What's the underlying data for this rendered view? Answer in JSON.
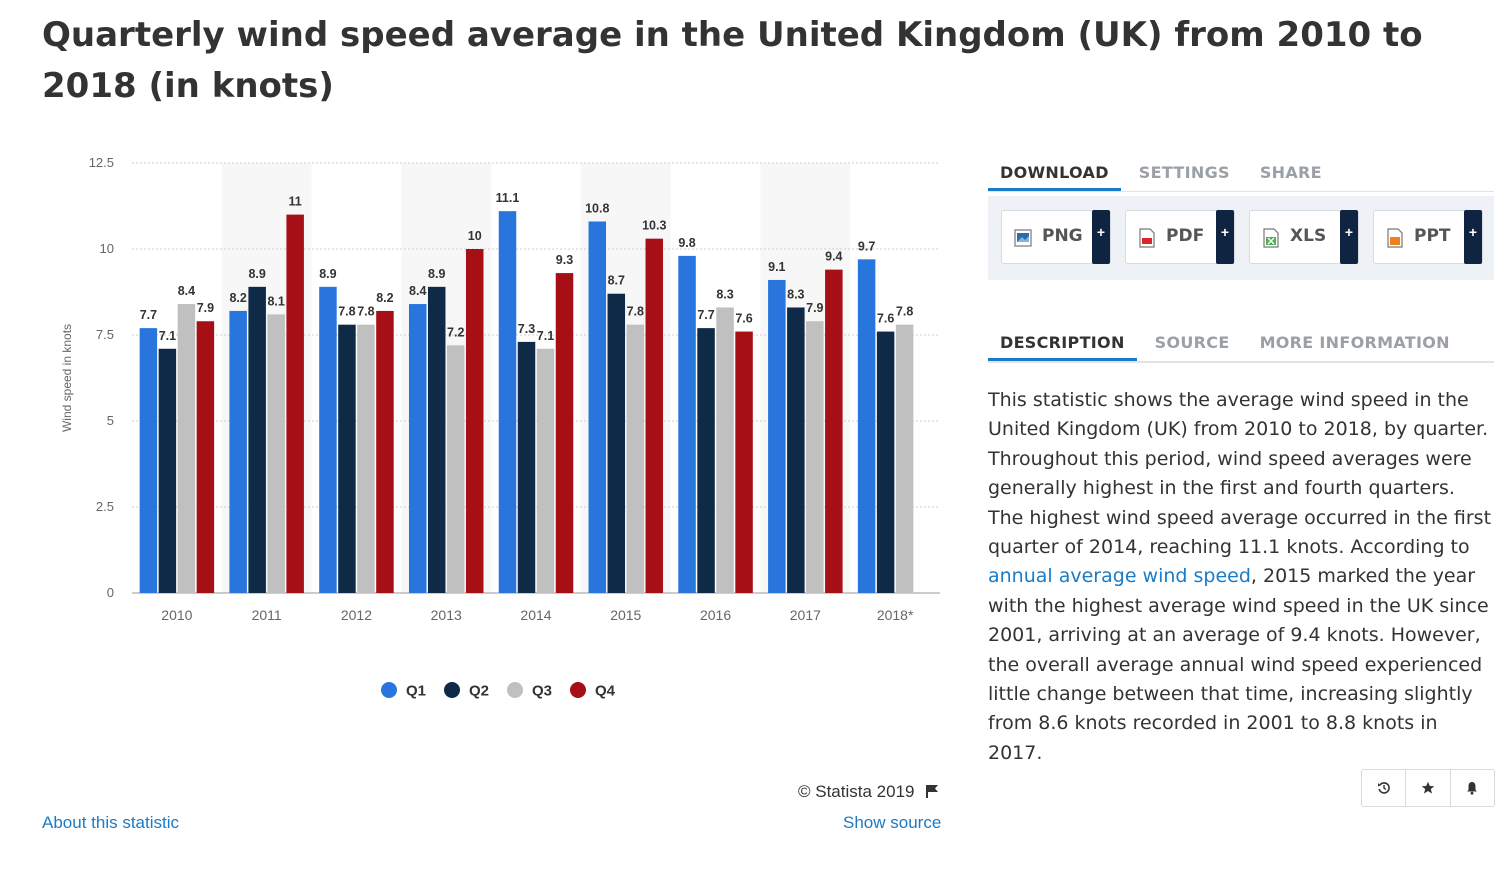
{
  "page": {
    "title": "Quarterly wind speed average in the United Kingdom (UK) from 2010 to 2018 (in knots)"
  },
  "tabs_top": [
    {
      "label": "DOWNLOAD"
    },
    {
      "label": "SETTINGS"
    },
    {
      "label": "SHARE"
    }
  ],
  "downloads": [
    {
      "label": "PNG",
      "plus": "+",
      "icon": "png-file-icon",
      "color": "#2b6cb0"
    },
    {
      "label": "PDF",
      "plus": "+",
      "icon": "pdf-file-icon",
      "color": "#d9262c"
    },
    {
      "label": "XLS",
      "plus": "+",
      "icon": "xls-file-icon",
      "color": "#4caf50"
    },
    {
      "label": "PPT",
      "plus": "+",
      "icon": "ppt-file-icon",
      "color": "#f07f1c"
    }
  ],
  "tabs_bottom": [
    {
      "label": "DESCRIPTION"
    },
    {
      "label": "SOURCE"
    },
    {
      "label": "MORE INFORMATION"
    }
  ],
  "description": {
    "before_link": "This statistic shows the average wind speed in the United Kingdom (UK) from 2010 to 2018, by quarter. Throughout this period, wind speed averages were generally highest in the first and fourth quarters. The highest wind speed average occurred in the first quarter of 2014, reaching 11.1 knots. According to ",
    "link_text": "annual average wind speed",
    "after_link": ", 2015 marked the year with the highest average wind speed in the UK since 2001, arriving at an average of 9.4 knots. However, the overall average annual wind speed experienced little change between that time, increasing slightly from 8.6 knots recorded in 2001 to 8.8 knots in 2017."
  },
  "footer": {
    "copyright": "© Statista 2019",
    "about_link": "About this statistic",
    "source_link": "Show source"
  },
  "actions": [
    "history-icon",
    "star-icon",
    "bell-icon"
  ],
  "chart_data": {
    "type": "bar",
    "title": "",
    "xlabel": "",
    "ylabel": "Wind speed in knots",
    "ylim": [
      0,
      12.5
    ],
    "yticks": [
      "0",
      "2.5",
      "5",
      "7.5",
      "10",
      "12.5"
    ],
    "ytick_values": [
      0,
      2.5,
      5,
      7.5,
      10,
      12.5
    ],
    "categories": [
      "2010",
      "2011",
      "2012",
      "2013",
      "2014",
      "2015",
      "2016",
      "2017",
      "2018*"
    ],
    "series": [
      {
        "name": "Q1",
        "color": "#2876dd",
        "values": [
          7.7,
          8.2,
          8.9,
          8.4,
          11.1,
          10.8,
          9.8,
          9.1,
          9.7
        ]
      },
      {
        "name": "Q2",
        "color": "#0f2a47",
        "values": [
          7.1,
          8.9,
          7.8,
          8.9,
          7.3,
          8.7,
          7.7,
          8.3,
          7.6
        ]
      },
      {
        "name": "Q3",
        "color": "#c0c0c0",
        "values": [
          8.4,
          8.1,
          7.8,
          7.2,
          7.1,
          7.8,
          8.3,
          7.9,
          7.8
        ]
      },
      {
        "name": "Q4",
        "color": "#a50f15",
        "values": [
          7.9,
          11,
          8.2,
          10,
          9.3,
          10.3,
          7.6,
          9.4,
          null
        ]
      }
    ],
    "grid": true,
    "legend_position": "bottom"
  }
}
